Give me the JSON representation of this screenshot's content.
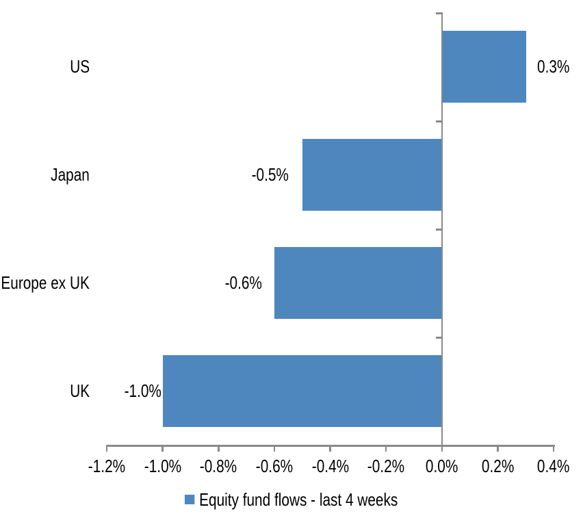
{
  "chart_data": {
    "type": "bar",
    "orientation": "horizontal",
    "title": "",
    "categories": [
      "US",
      "Japan",
      "Europe ex UK",
      "UK"
    ],
    "series": [
      {
        "name": "Equity fund flows - last 4 weeks",
        "values": [
          0.3,
          -0.5,
          -0.6,
          -1.0
        ],
        "data_labels": [
          "0.3%",
          "-0.5%",
          "-0.6%",
          "-1.0%"
        ]
      }
    ],
    "value_axis": {
      "unit": "%",
      "min": -1.2,
      "max": 0.4,
      "tick_step": 0.2,
      "tick_values": [
        -1.2,
        -1.0,
        -0.8,
        -0.6,
        -0.4,
        -0.2,
        0.0,
        0.2,
        0.4
      ],
      "tick_labels": [
        "-1.2%",
        "-1.0%",
        "-0.8%",
        "-0.6%",
        "-0.4%",
        "-0.2%",
        "0.0%",
        "0.2%",
        "0.4%"
      ]
    },
    "grid": false,
    "legend_position": "bottom",
    "legend": [
      {
        "label": "Equity fund flows - last 4 weeks",
        "color": "#4E87BE"
      }
    ],
    "colors": {
      "bar": "#4E87BE",
      "axis": "#898989",
      "text": "#000000",
      "background": "#FFFFFF"
    }
  }
}
